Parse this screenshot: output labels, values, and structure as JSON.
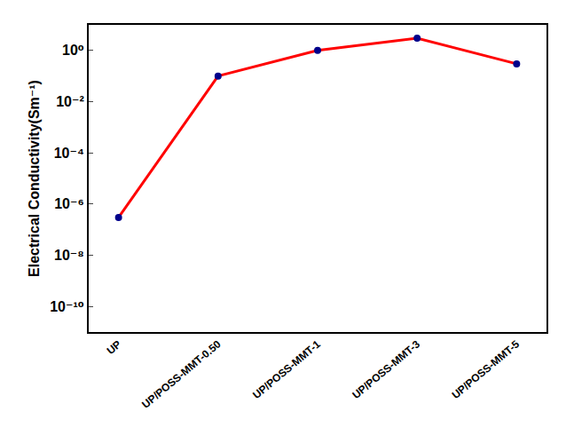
{
  "chart_data": {
    "type": "line",
    "y_label": "Electrical Conductivity(Sm⁻¹)",
    "categories": [
      "UP",
      "UP/POSS-MMT-0.50",
      "UP/POSS-MMT-1",
      "UP/POSS-MMT-3",
      "UP/POSS-MMT-5"
    ],
    "values": [
      3e-07,
      0.1,
      1,
      3,
      0.3
    ],
    "color": "#ff0000",
    "marker": "circle",
    "marker_color": "#00008b",
    "log": "y",
    "ylim": [
      1e-11,
      10
    ],
    "yticks": [
      {
        "value": 1e-10,
        "label": "10⁻¹⁰"
      },
      {
        "value": 1e-08,
        "label": "10⁻⁸"
      },
      {
        "value": 1e-06,
        "label": "10⁻⁶"
      },
      {
        "value": 0.0001,
        "label": "10⁻⁴"
      },
      {
        "value": 0.01,
        "label": "10⁻²"
      },
      {
        "value": 1,
        "label": "10⁰"
      }
    ],
    "grid": false
  }
}
